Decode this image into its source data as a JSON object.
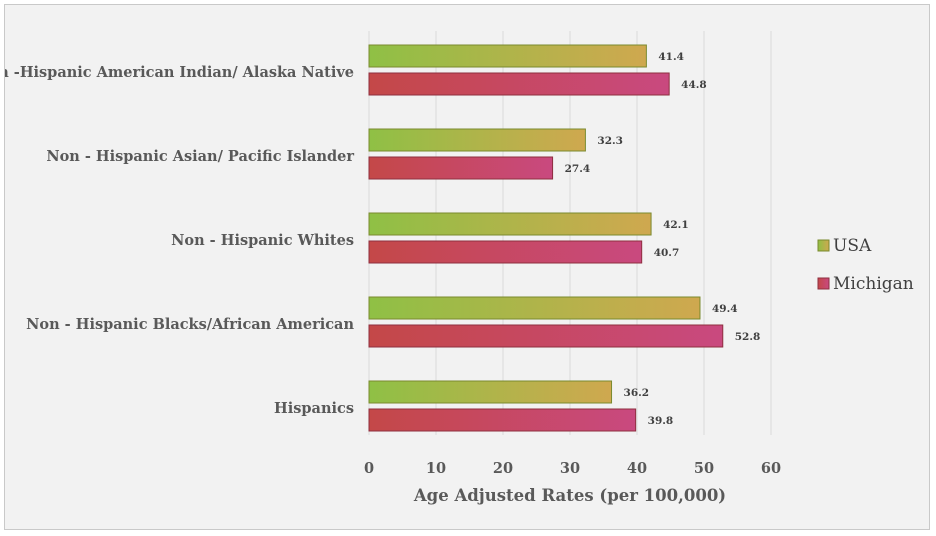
{
  "chart_data": {
    "type": "bar",
    "orientation": "horizontal",
    "categories": [
      "Non -Hispanic American Indian/ Alaska Native",
      "Non - Hispanic Asian/ Pacific Islander",
      "Non - Hispanic Whites",
      "Non - Hispanic Blacks/African American",
      "Hispanics"
    ],
    "series": [
      {
        "name": "USA",
        "values": [
          41.4,
          32.3,
          42.1,
          49.4,
          36.2
        ],
        "color_start": "#8fc045",
        "color_end": "#cfa84f"
      },
      {
        "name": "Michigan",
        "values": [
          44.8,
          27.4,
          40.7,
          52.8,
          39.8
        ],
        "color_start": "#c44848",
        "color_end": "#c9497f"
      }
    ],
    "data_labels": [
      [
        "41.4",
        "32.3",
        "42.1",
        "49.4",
        "36.2"
      ],
      [
        "44.8",
        "27.4",
        "40.7",
        "52.8",
        "39.8"
      ]
    ],
    "xlabel": "Age Adjusted Rates (per 100,000)",
    "ylabel": "",
    "xlim": [
      0,
      60
    ],
    "xticks": [
      0,
      10,
      20,
      30,
      40,
      50,
      60
    ],
    "grid": true,
    "legend_position": "right"
  }
}
